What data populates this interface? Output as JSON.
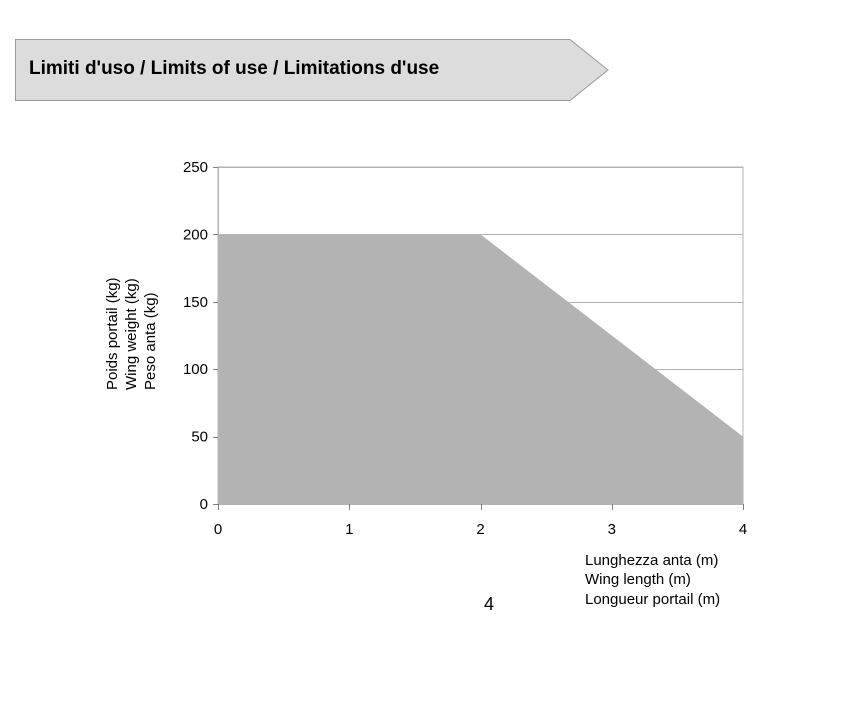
{
  "header": {
    "title": "Limiti d'uso / Limits of use / Limitations d'use",
    "fill_color": "#dcdcdc",
    "border_color": "#9a9a9a"
  },
  "chart_data": {
    "type": "area",
    "x": [
      0,
      2,
      4
    ],
    "y": [
      200,
      200,
      50
    ],
    "xlim": [
      0,
      4
    ],
    "ylim": [
      0,
      250
    ],
    "xticks": [
      0,
      1,
      2,
      3,
      4
    ],
    "yticks": [
      0,
      50,
      100,
      150,
      200,
      250
    ],
    "ylabel_lines": [
      "Peso anta (kg)",
      "Wing weight (kg)",
      "Poids portail (kg)"
    ],
    "xlabel_lines": [
      "Lunghezza anta (m)",
      "Wing length (m)",
      "Longueur portail (m)"
    ],
    "grid": "horizontal",
    "fill_color": "#b3b3b3",
    "grid_color": "#b3b3b3"
  },
  "page_number": "4"
}
